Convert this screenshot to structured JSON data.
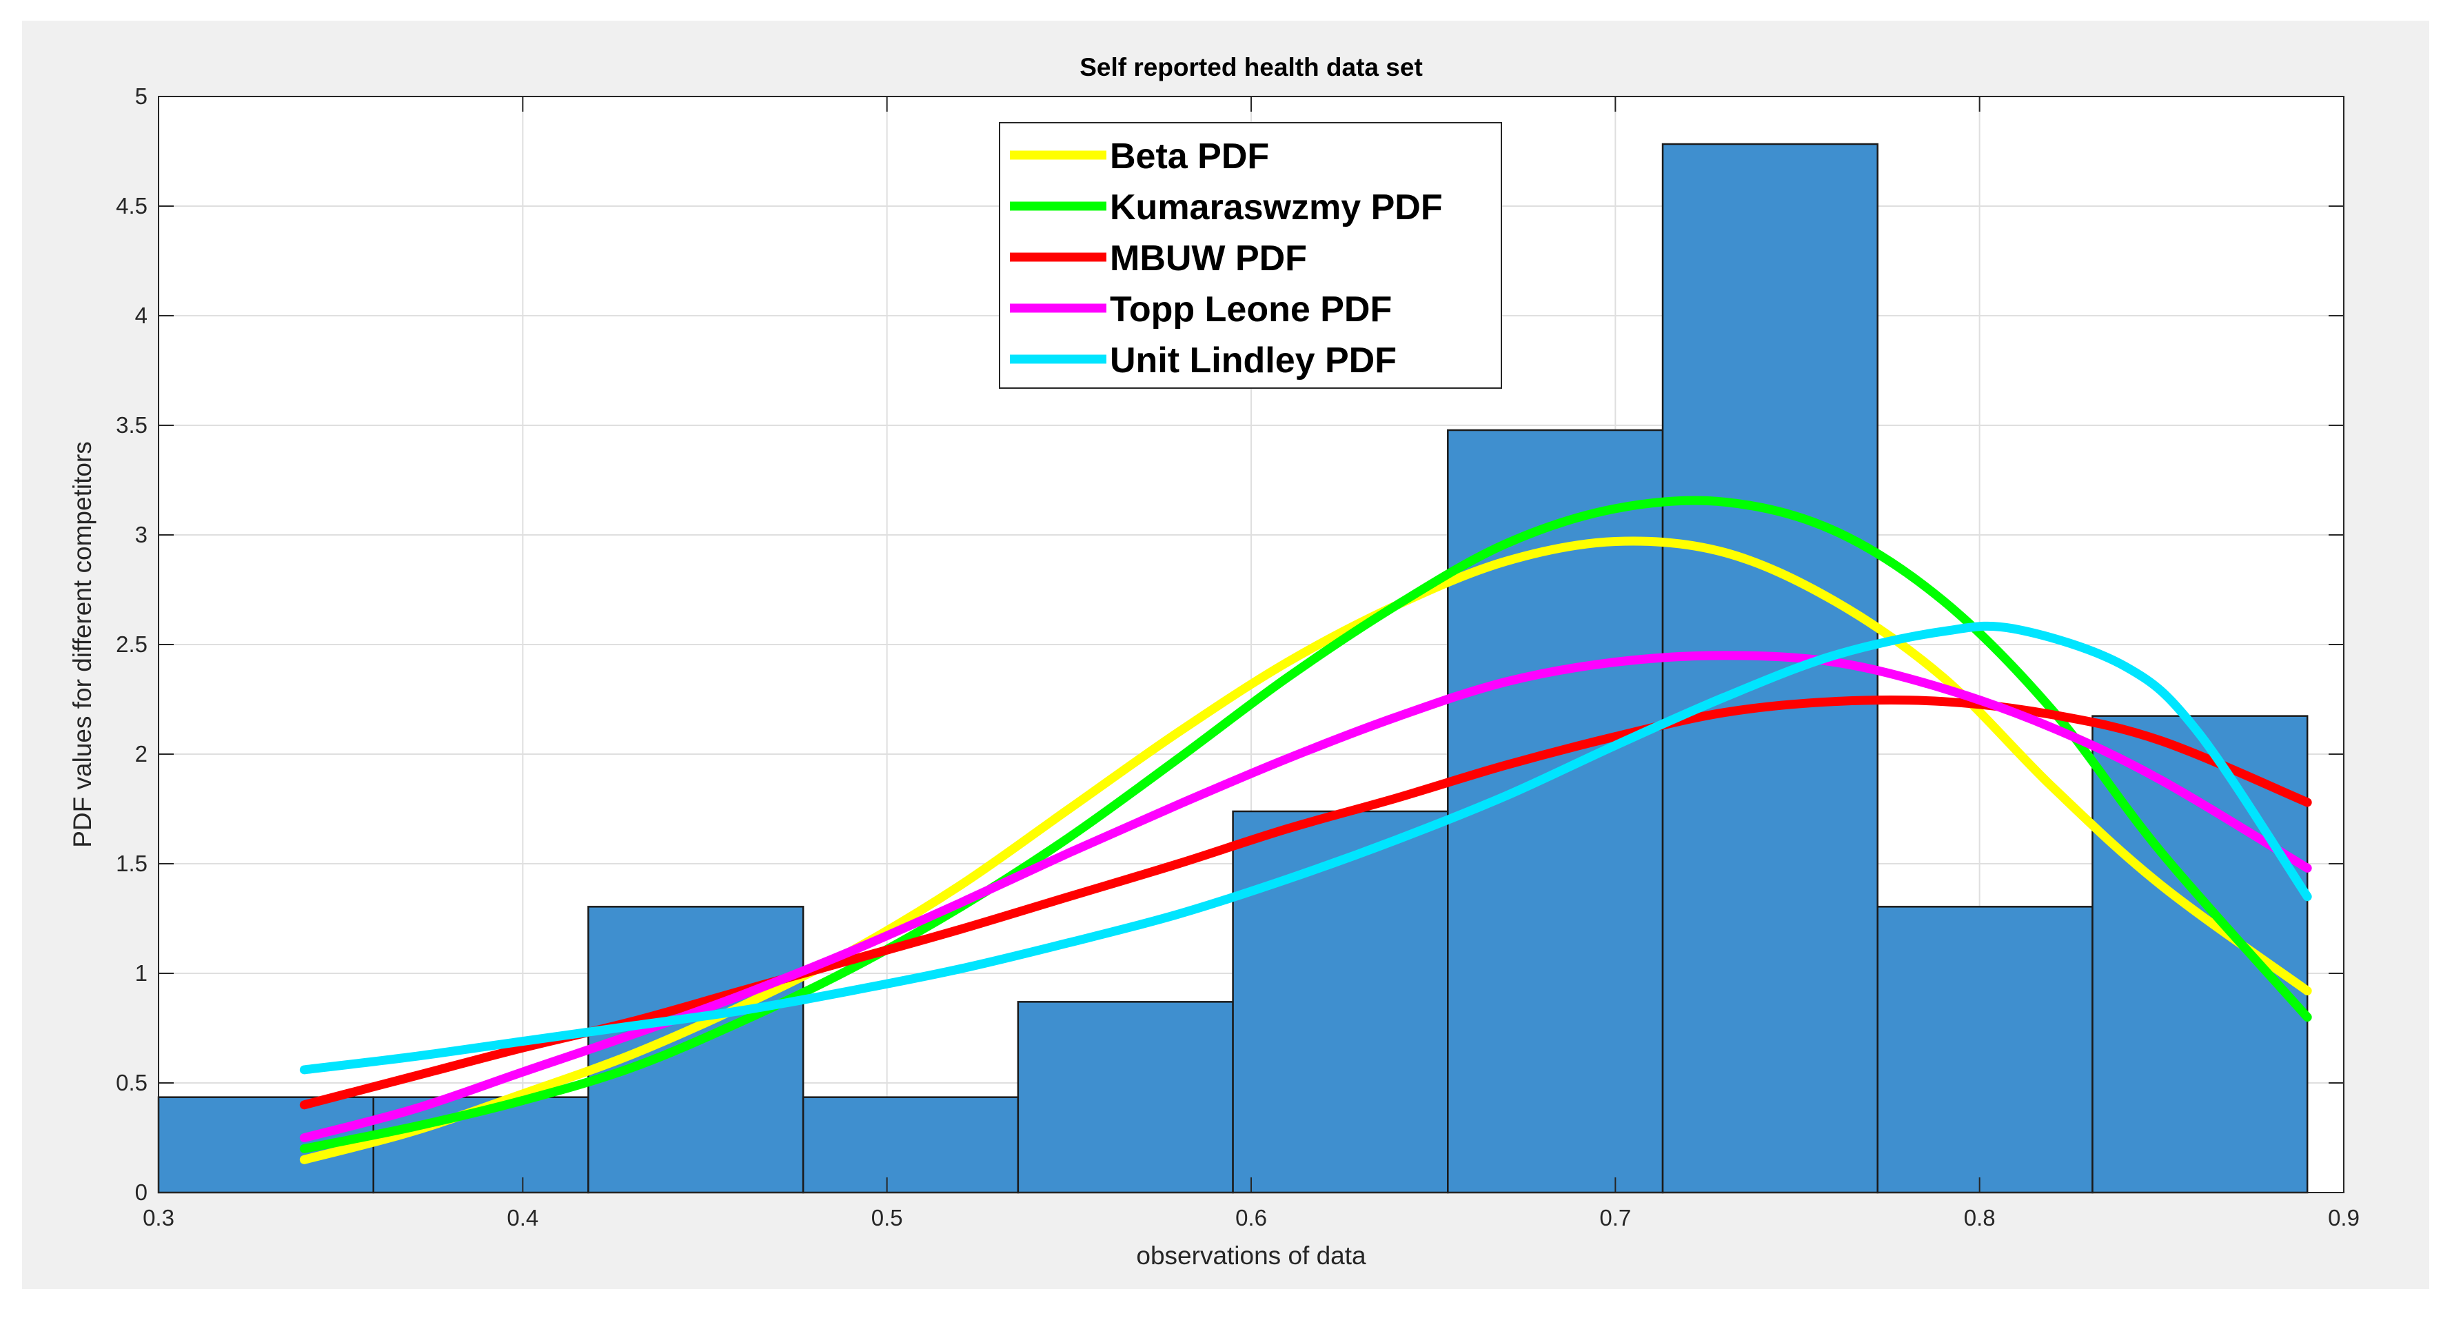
{
  "chart_data": {
    "type": "histogram-with-lines",
    "title": "Self reported health data set",
    "xlabel": "observations of  data",
    "ylabel": "PDF values for different competitors",
    "xlim": [
      0.3,
      0.9
    ],
    "ylim": [
      0,
      5
    ],
    "xticks": [
      "0.3",
      "0.4",
      "0.5",
      "0.6",
      "0.7",
      "0.8",
      "0.9"
    ],
    "yticks": [
      "0",
      "0.5",
      "1",
      "1.5",
      "2",
      "2.5",
      "3",
      "3.5",
      "4",
      "4.5",
      "5"
    ],
    "grid": true,
    "legend_position": "top-center",
    "bar_color": "#3f8fcf",
    "histogram": {
      "edges": [
        0.3,
        0.359,
        0.418,
        0.477,
        0.536,
        0.595,
        0.654,
        0.713,
        0.772,
        0.831,
        0.89
      ],
      "values": [
        0.435,
        0.435,
        1.304,
        0.435,
        0.87,
        1.739,
        3.478,
        4.783,
        1.304,
        2.174
      ]
    },
    "series": [
      {
        "name": "Beta PDF",
        "color": "#ffff00",
        "x": [
          0.34,
          0.37,
          0.4,
          0.43,
          0.46,
          0.49,
          0.52,
          0.55,
          0.58,
          0.61,
          0.64,
          0.67,
          0.7,
          0.73,
          0.76,
          0.79,
          0.82,
          0.85,
          0.89
        ],
        "y": [
          0.15,
          0.28,
          0.45,
          0.63,
          0.85,
          1.1,
          1.4,
          1.75,
          2.1,
          2.42,
          2.68,
          2.88,
          2.97,
          2.92,
          2.7,
          2.35,
          1.85,
          1.4,
          0.92
        ]
      },
      {
        "name": "Kumaraswzmy PDF",
        "color": "#00ff00",
        "x": [
          0.34,
          0.37,
          0.4,
          0.43,
          0.46,
          0.49,
          0.52,
          0.55,
          0.58,
          0.61,
          0.64,
          0.67,
          0.7,
          0.73,
          0.76,
          0.79,
          0.82,
          0.85,
          0.89
        ],
        "y": [
          0.2,
          0.3,
          0.42,
          0.57,
          0.78,
          1.02,
          1.3,
          1.62,
          1.98,
          2.35,
          2.68,
          2.96,
          3.12,
          3.15,
          3.02,
          2.7,
          2.2,
          1.55,
          0.8
        ]
      },
      {
        "name": "MBUW PDF",
        "color": "#ff0000",
        "x": [
          0.34,
          0.37,
          0.4,
          0.43,
          0.46,
          0.49,
          0.52,
          0.55,
          0.58,
          0.61,
          0.64,
          0.67,
          0.7,
          0.73,
          0.76,
          0.79,
          0.82,
          0.85,
          0.89
        ],
        "y": [
          0.4,
          0.53,
          0.66,
          0.78,
          0.92,
          1.06,
          1.2,
          1.35,
          1.5,
          1.66,
          1.8,
          1.95,
          2.08,
          2.19,
          2.24,
          2.24,
          2.18,
          2.06,
          1.78
        ]
      },
      {
        "name": "Topp Leone PDF",
        "color": "#ff00ff",
        "x": [
          0.34,
          0.37,
          0.4,
          0.43,
          0.46,
          0.49,
          0.52,
          0.55,
          0.58,
          0.61,
          0.64,
          0.67,
          0.7,
          0.73,
          0.76,
          0.79,
          0.82,
          0.85,
          0.89
        ],
        "y": [
          0.25,
          0.38,
          0.55,
          0.72,
          0.9,
          1.1,
          1.32,
          1.55,
          1.77,
          1.98,
          2.17,
          2.33,
          2.42,
          2.45,
          2.42,
          2.3,
          2.12,
          1.88,
          1.48
        ]
      },
      {
        "name": "Unit Lindley PDF",
        "color": "#00e5ff",
        "x": [
          0.34,
          0.37,
          0.4,
          0.43,
          0.46,
          0.49,
          0.52,
          0.55,
          0.58,
          0.61,
          0.64,
          0.67,
          0.7,
          0.73,
          0.76,
          0.79,
          0.81,
          0.84,
          0.86,
          0.89
        ],
        "y": [
          0.56,
          0.62,
          0.69,
          0.76,
          0.83,
          0.92,
          1.02,
          1.14,
          1.27,
          1.43,
          1.61,
          1.81,
          2.04,
          2.26,
          2.45,
          2.56,
          2.57,
          2.4,
          2.1,
          1.35
        ]
      }
    ]
  }
}
